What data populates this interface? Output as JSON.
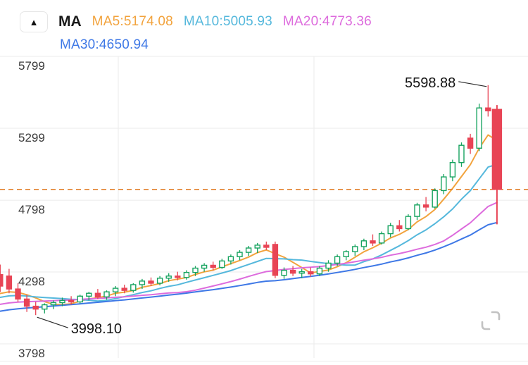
{
  "header": {
    "toggle_icon": "▲",
    "indicator_label": "MA",
    "ma5": {
      "text": "MA5:5174.08",
      "color": "#f2a33d"
    },
    "ma10": {
      "text": "MA10:5005.93",
      "color": "#55b8dc"
    },
    "ma20": {
      "text": "MA20:4773.36",
      "color": "#dd6cdd"
    },
    "ma30": {
      "text": "MA30:4650.94",
      "color": "#3e78e6"
    }
  },
  "icons": {
    "indicator_toggle": "triangle-up",
    "bottom_right": "corner-brackets-expand"
  },
  "chart_data": {
    "type": "candlestick",
    "title": "",
    "y_ticks": [
      5799,
      5299,
      4798,
      4298,
      3798
    ],
    "y_range": [
      3798,
      5799
    ],
    "grid": {
      "vertical_lines_x": [
        168,
        446
      ]
    },
    "price_line": {
      "value": 4873,
      "style": "dashed",
      "color": "#e2812e"
    },
    "annotations": {
      "high": {
        "text": "5598.88",
        "value": 5598.88,
        "candle_index": 55
      },
      "low": {
        "text": "3998.10",
        "value": 3998.1,
        "candle_index": 4
      }
    },
    "ma_lines": [
      {
        "name": "MA5",
        "period": 5,
        "color": "#f2a33d"
      },
      {
        "name": "MA10",
        "period": 10,
        "color": "#55b8dc"
      },
      {
        "name": "MA20",
        "period": 20,
        "color": "#dd6cdd"
      },
      {
        "name": "MA30",
        "period": 30,
        "color": "#3e78e6"
      }
    ],
    "colors": {
      "up": "#16a35f",
      "down": "#e84455",
      "axis_text": "#3a3a3a",
      "grid": "#ebebeb",
      "annotation_text": "#141414"
    },
    "ohlc_format": "[open, high, low, close]",
    "ohlc": [
      [
        4280,
        4350,
        4160,
        4200
      ],
      [
        4270,
        4320,
        4150,
        4180
      ],
      [
        4180,
        4220,
        4090,
        4110
      ],
      [
        4110,
        4140,
        4020,
        4060
      ],
      [
        4060,
        4090,
        3998.1,
        4040
      ],
      [
        4040,
        4080,
        4010,
        4070
      ],
      [
        4070,
        4100,
        4040,
        4085
      ],
      [
        4085,
        4120,
        4060,
        4100
      ],
      [
        4100,
        4130,
        4070,
        4090
      ],
      [
        4090,
        4140,
        4080,
        4130
      ],
      [
        4130,
        4160,
        4100,
        4150
      ],
      [
        4150,
        4180,
        4110,
        4125
      ],
      [
        4125,
        4170,
        4105,
        4160
      ],
      [
        4160,
        4200,
        4130,
        4185
      ],
      [
        4185,
        4210,
        4150,
        4170
      ],
      [
        4170,
        4220,
        4155,
        4210
      ],
      [
        4210,
        4250,
        4180,
        4235
      ],
      [
        4235,
        4260,
        4200,
        4220
      ],
      [
        4220,
        4270,
        4205,
        4255
      ],
      [
        4255,
        4290,
        4230,
        4270
      ],
      [
        4270,
        4300,
        4240,
        4260
      ],
      [
        4260,
        4310,
        4245,
        4295
      ],
      [
        4295,
        4340,
        4270,
        4325
      ],
      [
        4325,
        4360,
        4300,
        4345
      ],
      [
        4345,
        4370,
        4310,
        4330
      ],
      [
        4330,
        4390,
        4320,
        4375
      ],
      [
        4375,
        4420,
        4350,
        4405
      ],
      [
        4405,
        4450,
        4380,
        4435
      ],
      [
        4435,
        4480,
        4410,
        4465
      ],
      [
        4465,
        4500,
        4430,
        4485
      ],
      [
        4485,
        4510,
        4450,
        4470
      ],
      [
        4490,
        4510,
        4255,
        4275
      ],
      [
        4275,
        4330,
        4250,
        4310
      ],
      [
        4310,
        4340,
        4270,
        4290
      ],
      [
        4290,
        4320,
        4255,
        4300
      ],
      [
        4300,
        4330,
        4265,
        4285
      ],
      [
        4285,
        4340,
        4270,
        4325
      ],
      [
        4325,
        4380,
        4300,
        4360
      ],
      [
        4360,
        4420,
        4340,
        4405
      ],
      [
        4405,
        4450,
        4380,
        4440
      ],
      [
        4440,
        4490,
        4410,
        4475
      ],
      [
        4475,
        4530,
        4450,
        4515
      ],
      [
        4515,
        4560,
        4480,
        4500
      ],
      [
        4500,
        4580,
        4490,
        4565
      ],
      [
        4565,
        4640,
        4540,
        4620
      ],
      [
        4620,
        4660,
        4580,
        4600
      ],
      [
        4600,
        4700,
        4590,
        4685
      ],
      [
        4685,
        4780,
        4660,
        4765
      ],
      [
        4765,
        4820,
        4720,
        4750
      ],
      [
        4750,
        4880,
        4740,
        4865
      ],
      [
        4865,
        4980,
        4840,
        4960
      ],
      [
        4960,
        5080,
        4930,
        5060
      ],
      [
        5060,
        5200,
        5030,
        5180
      ],
      [
        5230,
        5260,
        5120,
        5160
      ],
      [
        5160,
        5470,
        5140,
        5440
      ],
      [
        5440,
        5598.88,
        5380,
        5420
      ],
      [
        5430,
        5460,
        4630,
        4873
      ]
    ]
  }
}
